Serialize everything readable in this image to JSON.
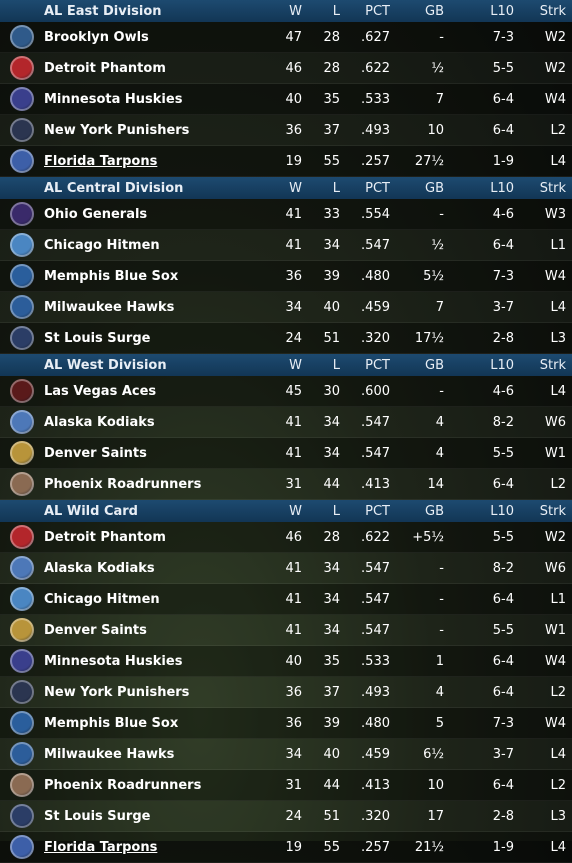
{
  "columns": {
    "w": "W",
    "l": "L",
    "pct": "PCT",
    "gb": "GB",
    "l10": "L10",
    "strk": "Strk"
  },
  "sections": [
    {
      "title": "AL East Division",
      "teams": [
        {
          "name": "Brooklyn Owls",
          "w": "47",
          "l": "28",
          "pct": ".627",
          "gb": "-",
          "l10": "7-3",
          "strk": "W2",
          "logo": "owl-logo",
          "color": "#2f5a8a",
          "link": false
        },
        {
          "name": "Detroit Phantom",
          "w": "46",
          "l": "28",
          "pct": ".622",
          "gb": "½",
          "l10": "5-5",
          "strk": "W2",
          "logo": "phantom-logo",
          "color": "#b3262b",
          "link": false
        },
        {
          "name": "Minnesota Huskies",
          "w": "40",
          "l": "35",
          "pct": ".533",
          "gb": "7",
          "l10": "6-4",
          "strk": "W4",
          "logo": "husky-logo",
          "color": "#3a3f8c",
          "link": false
        },
        {
          "name": "New York Punishers",
          "w": "36",
          "l": "37",
          "pct": ".493",
          "gb": "10",
          "l10": "6-4",
          "strk": "L2",
          "logo": "punisher-logo",
          "color": "#2b3550",
          "link": false
        },
        {
          "name": "Florida Tarpons",
          "w": "19",
          "l": "55",
          "pct": ".257",
          "gb": "27½",
          "l10": "1-9",
          "strk": "L4",
          "logo": "tarpon-logo",
          "color": "#3d5fa8",
          "link": true
        }
      ]
    },
    {
      "title": "AL Central Division",
      "teams": [
        {
          "name": "Ohio Generals",
          "w": "41",
          "l": "33",
          "pct": ".554",
          "gb": "-",
          "l10": "4-6",
          "strk": "W3",
          "logo": "general-logo",
          "color": "#3a2a6a",
          "link": false
        },
        {
          "name": "Chicago Hitmen",
          "w": "41",
          "l": "34",
          "pct": ".547",
          "gb": "½",
          "l10": "6-4",
          "strk": "L1",
          "logo": "hitmen-logo",
          "color": "#4a86c2",
          "link": false
        },
        {
          "name": "Memphis Blue Sox",
          "w": "36",
          "l": "39",
          "pct": ".480",
          "gb": "5½",
          "l10": "7-3",
          "strk": "W4",
          "logo": "bluesox-logo",
          "color": "#2a5e9c",
          "link": false
        },
        {
          "name": "Milwaukee Hawks",
          "w": "34",
          "l": "40",
          "pct": ".459",
          "gb": "7",
          "l10": "3-7",
          "strk": "L4",
          "logo": "hawk-logo",
          "color": "#2c5d9a",
          "link": false
        },
        {
          "name": "St Louis Surge",
          "w": "24",
          "l": "51",
          "pct": ".320",
          "gb": "17½",
          "l10": "2-8",
          "strk": "L3",
          "logo": "surge-logo",
          "color": "#2b3d66",
          "link": false
        }
      ]
    },
    {
      "title": "AL West Division",
      "teams": [
        {
          "name": "Las Vegas  Aces",
          "w": "45",
          "l": "30",
          "pct": ".600",
          "gb": "-",
          "l10": "4-6",
          "strk": "L4",
          "logo": "aces-logo",
          "color": "#5a1a1a",
          "link": false
        },
        {
          "name": "Alaska Kodiaks",
          "w": "41",
          "l": "34",
          "pct": ".547",
          "gb": "4",
          "l10": "8-2",
          "strk": "W6",
          "logo": "kodiak-logo",
          "color": "#4d78b8",
          "link": false
        },
        {
          "name": "Denver Saints",
          "w": "41",
          "l": "34",
          "pct": ".547",
          "gb": "4",
          "l10": "5-5",
          "strk": "W1",
          "logo": "saints-logo",
          "color": "#b8943a",
          "link": false
        },
        {
          "name": "Phoenix Roadrunners",
          "w": "31",
          "l": "44",
          "pct": ".413",
          "gb": "14",
          "l10": "6-4",
          "strk": "L2",
          "logo": "roadrunner-logo",
          "color": "#8a6a52",
          "link": false
        }
      ]
    },
    {
      "title": "AL  Wild Card",
      "teams": [
        {
          "name": "Detroit Phantom",
          "w": "46",
          "l": "28",
          "pct": ".622",
          "gb": "+5½",
          "l10": "5-5",
          "strk": "W2",
          "logo": "phantom-logo",
          "color": "#b3262b",
          "link": false
        },
        {
          "name": "Alaska Kodiaks",
          "w": "41",
          "l": "34",
          "pct": ".547",
          "gb": "-",
          "l10": "8-2",
          "strk": "W6",
          "logo": "kodiak-logo",
          "color": "#4d78b8",
          "link": false
        },
        {
          "name": "Chicago Hitmen",
          "w": "41",
          "l": "34",
          "pct": ".547",
          "gb": "-",
          "l10": "6-4",
          "strk": "L1",
          "logo": "hitmen-logo",
          "color": "#4a86c2",
          "link": false
        },
        {
          "name": "Denver Saints",
          "w": "41",
          "l": "34",
          "pct": ".547",
          "gb": "-",
          "l10": "5-5",
          "strk": "W1",
          "logo": "saints-logo",
          "color": "#b8943a",
          "link": false
        },
        {
          "name": "Minnesota Huskies",
          "w": "40",
          "l": "35",
          "pct": ".533",
          "gb": "1",
          "l10": "6-4",
          "strk": "W4",
          "logo": "husky-logo",
          "color": "#3a3f8c",
          "link": false
        },
        {
          "name": "New York Punishers",
          "w": "36",
          "l": "37",
          "pct": ".493",
          "gb": "4",
          "l10": "6-4",
          "strk": "L2",
          "logo": "punisher-logo",
          "color": "#2b3550",
          "link": false
        },
        {
          "name": "Memphis Blue Sox",
          "w": "36",
          "l": "39",
          "pct": ".480",
          "gb": "5",
          "l10": "7-3",
          "strk": "W4",
          "logo": "bluesox-logo",
          "color": "#2a5e9c",
          "link": false
        },
        {
          "name": "Milwaukee Hawks",
          "w": "34",
          "l": "40",
          "pct": ".459",
          "gb": "6½",
          "l10": "3-7",
          "strk": "L4",
          "logo": "hawk-logo",
          "color": "#2c5d9a",
          "link": false
        },
        {
          "name": "Phoenix Roadrunners",
          "w": "31",
          "l": "44",
          "pct": ".413",
          "gb": "10",
          "l10": "6-4",
          "strk": "L2",
          "logo": "roadrunner-logo",
          "color": "#8a6a52",
          "link": false
        },
        {
          "name": "St Louis Surge",
          "w": "24",
          "l": "51",
          "pct": ".320",
          "gb": "17",
          "l10": "2-8",
          "strk": "L3",
          "logo": "surge-logo",
          "color": "#2b3d66",
          "link": false
        },
        {
          "name": "Florida Tarpons",
          "w": "19",
          "l": "55",
          "pct": ".257",
          "gb": "21½",
          "l10": "1-9",
          "strk": "L4",
          "logo": "tarpon-logo",
          "color": "#3d5fa8",
          "link": true
        }
      ]
    }
  ]
}
